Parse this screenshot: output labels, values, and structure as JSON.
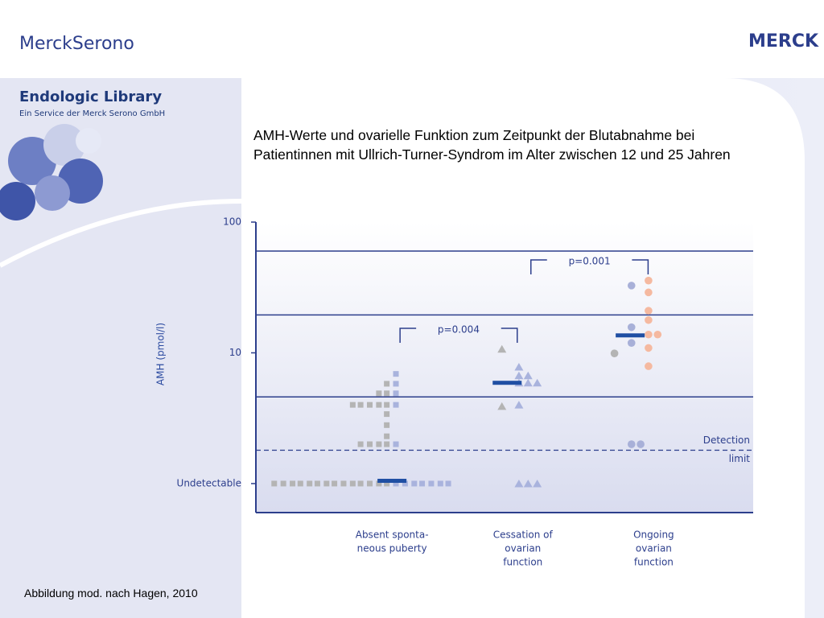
{
  "header": {
    "logo_left": "MerckSerono",
    "logo_right": "MERCK",
    "library": "Endologic Library",
    "library_sub": "Ein Service der Merck Serono GmbH"
  },
  "footer": "Abbildung mod. nach Hagen, 2010",
  "chart_data": {
    "type": "scatter",
    "title": "AMH-Werte und ovarielle Funktion zum Zeitpunkt der Blutabnahme bei Patientinnen mit Ullrich-Turner-Syndrom im Alter zwischen 12 und 25 Jahren",
    "ylabel": "AMH (pmol/l)",
    "categories": [
      [
        "Absent sponta-",
        "neous puberty"
      ],
      [
        "Cessation of",
        "ovarian",
        "function"
      ],
      [
        "Ongoing",
        "ovarian",
        "function"
      ]
    ],
    "xlim": [
      -0.04,
      3.76
    ],
    "ylim": [
      0.6,
      100
    ],
    "log_y": true,
    "yticks": [
      100,
      10,
      {
        "value": 1,
        "label": "Undetectable"
      }
    ],
    "hlines": [
      60,
      19.5,
      4.6
    ],
    "detection_limit": {
      "value": 1.8,
      "label": [
        "Detection",
        "limit"
      ]
    },
    "series": [
      {
        "marker": "square",
        "color": "#b4b4b4",
        "x": [
          0.1,
          0.17,
          0.24,
          0.3,
          0.37,
          0.43,
          0.5,
          0.56,
          0.63,
          0.7,
          0.76,
          0.83,
          0.9,
          0.96,
          0.76,
          0.83,
          0.9,
          0.96,
          0.96,
          0.96,
          0.96,
          0.7,
          0.76,
          0.83,
          0.9,
          0.96,
          0.9,
          0.96,
          0.96
        ],
        "values": [
          1,
          1,
          1,
          1,
          1,
          1,
          1,
          1,
          1,
          1,
          1,
          1,
          1,
          1,
          2.0,
          2.0,
          2.0,
          2.0,
          2.3,
          2.8,
          3.4,
          4.0,
          4.0,
          4.0,
          4.0,
          4.0,
          4.9,
          4.9,
          5.8
        ]
      },
      {
        "marker": "square",
        "color": "#a9b3dd",
        "x": [
          1.03,
          1.1,
          1.17,
          1.23,
          1.3,
          1.37,
          1.43,
          1.03,
          1.03,
          1.03,
          1.03,
          1.03
        ],
        "values": [
          1,
          1,
          1,
          1,
          1,
          1,
          1,
          2.0,
          4.0,
          4.9,
          5.8,
          6.9
        ]
      },
      {
        "marker": "triangle",
        "color": "#b4b4b4",
        "x": [
          1.84,
          1.84
        ],
        "values": [
          10.7,
          3.9
        ]
      },
      {
        "marker": "triangle",
        "color": "#a9b3dd",
        "x": [
          1.97,
          1.97,
          2.04,
          1.97,
          2.04,
          2.11,
          1.97,
          1.97,
          2.04,
          2.11
        ],
        "values": [
          7.8,
          6.7,
          6.7,
          5.9,
          5.9,
          5.9,
          4.0,
          1,
          1,
          1
        ]
      },
      {
        "marker": "circle",
        "color": "#b4b4b4",
        "x": [
          2.7
        ],
        "values": [
          9.9
        ]
      },
      {
        "marker": "circle",
        "color": "#a8b0d8",
        "x": [
          2.83,
          2.83,
          2.83,
          2.83,
          2.9
        ],
        "values": [
          32.7,
          15.7,
          11.9,
          2.0,
          2.0
        ]
      },
      {
        "marker": "circle",
        "color": "#f5b9a0",
        "x": [
          2.96,
          2.96,
          2.96,
          2.96,
          2.96,
          3.03,
          2.96,
          2.96
        ],
        "values": [
          35.7,
          29,
          21,
          17.8,
          13.8,
          13.8,
          10.9,
          7.9
        ]
      }
    ],
    "medians": {
      "color": "#1f4fa3",
      "x": [
        1.0,
        1.88,
        2.82
      ],
      "values": [
        1.05,
        5.9,
        13.6
      ]
    },
    "comparisons": [
      {
        "groups": [
          0,
          1
        ],
        "label": "p=0.004"
      },
      {
        "groups": [
          1,
          2
        ],
        "label": "p=0.001"
      }
    ]
  }
}
